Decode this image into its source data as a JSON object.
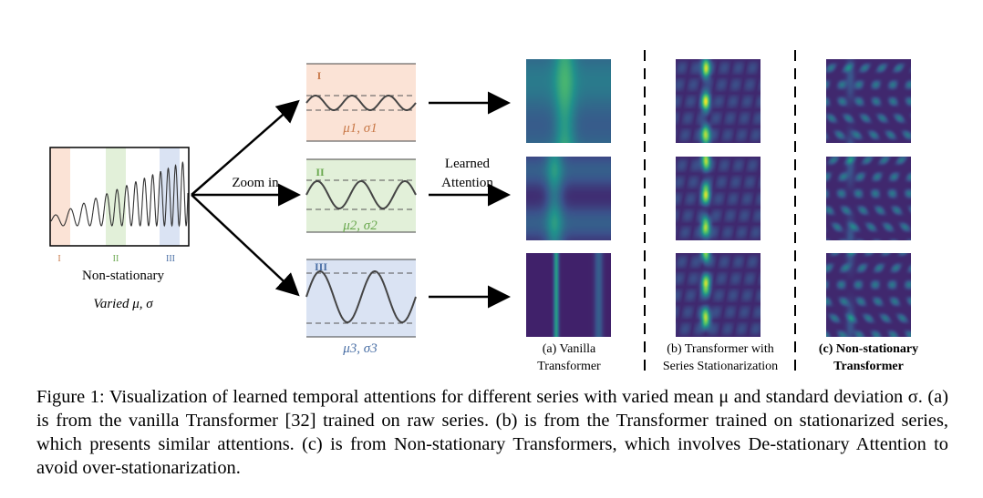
{
  "figure": {
    "source": {
      "region_labels": [
        "I",
        "II",
        "III"
      ],
      "label_nonstationary": "Non-stationary",
      "label_varied": "Varied μ, σ"
    },
    "zoom_label": "Zoom in",
    "learned_label_1": "Learned",
    "learned_label_2": "Attention",
    "panels": [
      {
        "roman": "I",
        "stats": "μ1, σ1",
        "color": "#c97a4a",
        "bg": "#fbe3d6",
        "dash": "#555555"
      },
      {
        "roman": "II",
        "stats": "μ2, σ2",
        "color": "#6aa84f",
        "bg": "#e2f0d9",
        "dash": "#555555"
      },
      {
        "roman": "III",
        "stats": "μ3, σ3",
        "color": "#4a6fa5",
        "bg": "#dae3f3",
        "dash": "#555555"
      }
    ],
    "columns": [
      {
        "line1": "(a) Vanilla",
        "line2": "Transformer",
        "bold": false
      },
      {
        "line1": "(b) Transformer with",
        "line2": "Series Stationarization",
        "bold": false
      },
      {
        "line1": "(c) Non-stationary",
        "line2": "Transformer",
        "bold": true
      }
    ]
  },
  "caption": {
    "label": "Figure 1:",
    "text": "Visualization of learned temporal attentions for different series with varied mean μ and standard deviation σ. (a) is from the vanilla Transformer [32] trained on raw series. (b) is from the Transformer trained on stationarized series, which presents similar attentions. (c) is from Non-stationary Transformers, which involves De-stationary Attention to avoid over-stationarization."
  }
}
